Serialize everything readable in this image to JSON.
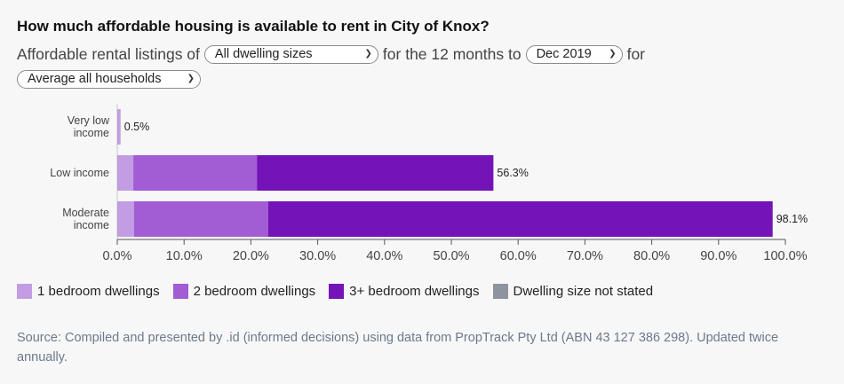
{
  "header": {
    "title": "How much affordable housing is available to rent in City of Knox?"
  },
  "controls": {
    "prefix": "Affordable rental listings of",
    "dwelling_select": "All dwelling sizes",
    "middle": "for the 12 months to",
    "month_select": "Dec 2019",
    "suffix": "for",
    "household_select": "Average all households"
  },
  "legend": [
    {
      "label": "1 bedroom dwellings",
      "color": "#c39de3"
    },
    {
      "label": "2 bedroom dwellings",
      "color": "#a25cd4"
    },
    {
      "label": "3+ bedroom dwellings",
      "color": "#7413b8"
    },
    {
      "label": "Dwelling size not stated",
      "color": "#8e93a0"
    }
  ],
  "source": "Source: Compiled and presented by .id (informed decisions) using data from PropTrack Pty Ltd (ABN 43 127 386 298). Updated twice annually.",
  "chart_data": {
    "type": "bar",
    "orientation": "horizontal",
    "stacked": true,
    "categories": [
      "Very low income",
      "Low income",
      "Moderate income"
    ],
    "series": [
      {
        "name": "1 bedroom dwellings",
        "color": "#c39de3",
        "values": [
          0.5,
          2.4,
          2.5
        ]
      },
      {
        "name": "2 bedroom dwellings",
        "color": "#a25cd4",
        "values": [
          0.0,
          18.5,
          20.1
        ]
      },
      {
        "name": "3+ bedroom dwellings",
        "color": "#7413b8",
        "values": [
          0.0,
          35.4,
          75.5
        ]
      },
      {
        "name": "Dwelling size not stated",
        "color": "#8e93a0",
        "values": [
          0.0,
          0.0,
          0.0
        ]
      }
    ],
    "totals": [
      "0.5%",
      "56.3%",
      "98.1%"
    ],
    "xlim": [
      0,
      100
    ],
    "xticks": [
      0,
      10,
      20,
      30,
      40,
      50,
      60,
      70,
      80,
      90,
      100
    ],
    "xtick_labels": [
      "0.0%",
      "10.0%",
      "20.0%",
      "30.0%",
      "40.0%",
      "50.0%",
      "60.0%",
      "70.0%",
      "80.0%",
      "90.0%",
      "100.0%"
    ],
    "grid": false,
    "legend_position": "bottom-left"
  }
}
